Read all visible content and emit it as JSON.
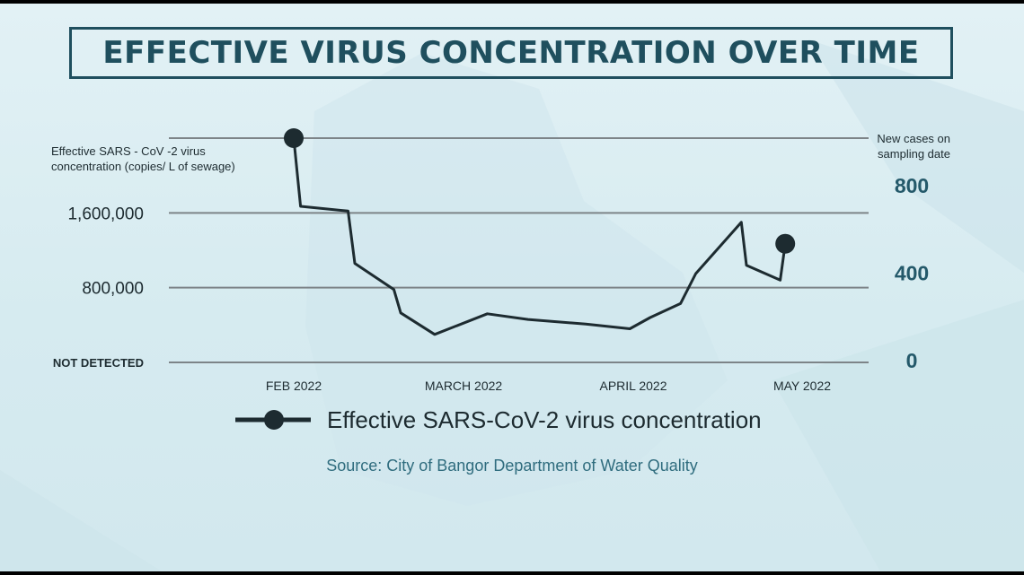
{
  "title": "EFFECTIVE VIRUS CONCENTRATION OVER TIME",
  "source_text": "Source:  City of Bangor Department of Water Quality",
  "colors": {
    "line": "#1d2b30",
    "grid": "#7d8488",
    "title": "#1f4f5e",
    "right_axis": "#24596a",
    "source": "#2f6c7e"
  },
  "chart_data": {
    "type": "line",
    "y_left_label": [
      "Effective SARS - CoV -2 virus",
      "concentration (copies/ L of sewage)"
    ],
    "y_right_label": [
      "New cases on",
      "sampling date"
    ],
    "y_left_ticks": [
      {
        "value": 0,
        "label": "NOT DETECTED"
      },
      {
        "value": 800000,
        "label": "800,000"
      },
      {
        "value": 1600000,
        "label": "1,600,000"
      }
    ],
    "y_right_ticks": [
      {
        "value": 0,
        "label": "0"
      },
      {
        "value": 400,
        "label": "400"
      },
      {
        "value": 800,
        "label": "800"
      }
    ],
    "x_ticks": [
      {
        "x": 0,
        "label": "FEB 2022"
      },
      {
        "x": 1,
        "label": "MARCH 2022"
      },
      {
        "x": 2,
        "label": "APRIL 2022"
      },
      {
        "x": 3,
        "label": "MAY 2022"
      }
    ],
    "ylim": [
      0,
      2400000
    ],
    "grid": true,
    "legend_position": "bottom",
    "series": [
      {
        "name": "Effective SARS-CoV-2 virus concentration",
        "markers": "endpoints",
        "x": [
          0,
          0.04,
          0.32,
          0.36,
          0.59,
          0.63,
          0.83,
          1.14,
          1.38,
          1.72,
          1.98,
          2.1,
          2.28,
          2.37,
          2.64,
          2.67,
          2.87,
          2.9
        ],
        "y": [
          2400000,
          1670000,
          1620000,
          1060000,
          780000,
          530000,
          300000,
          520000,
          460000,
          410000,
          360000,
          480000,
          630000,
          950000,
          1500000,
          1040000,
          880000,
          1270000
        ]
      }
    ]
  }
}
